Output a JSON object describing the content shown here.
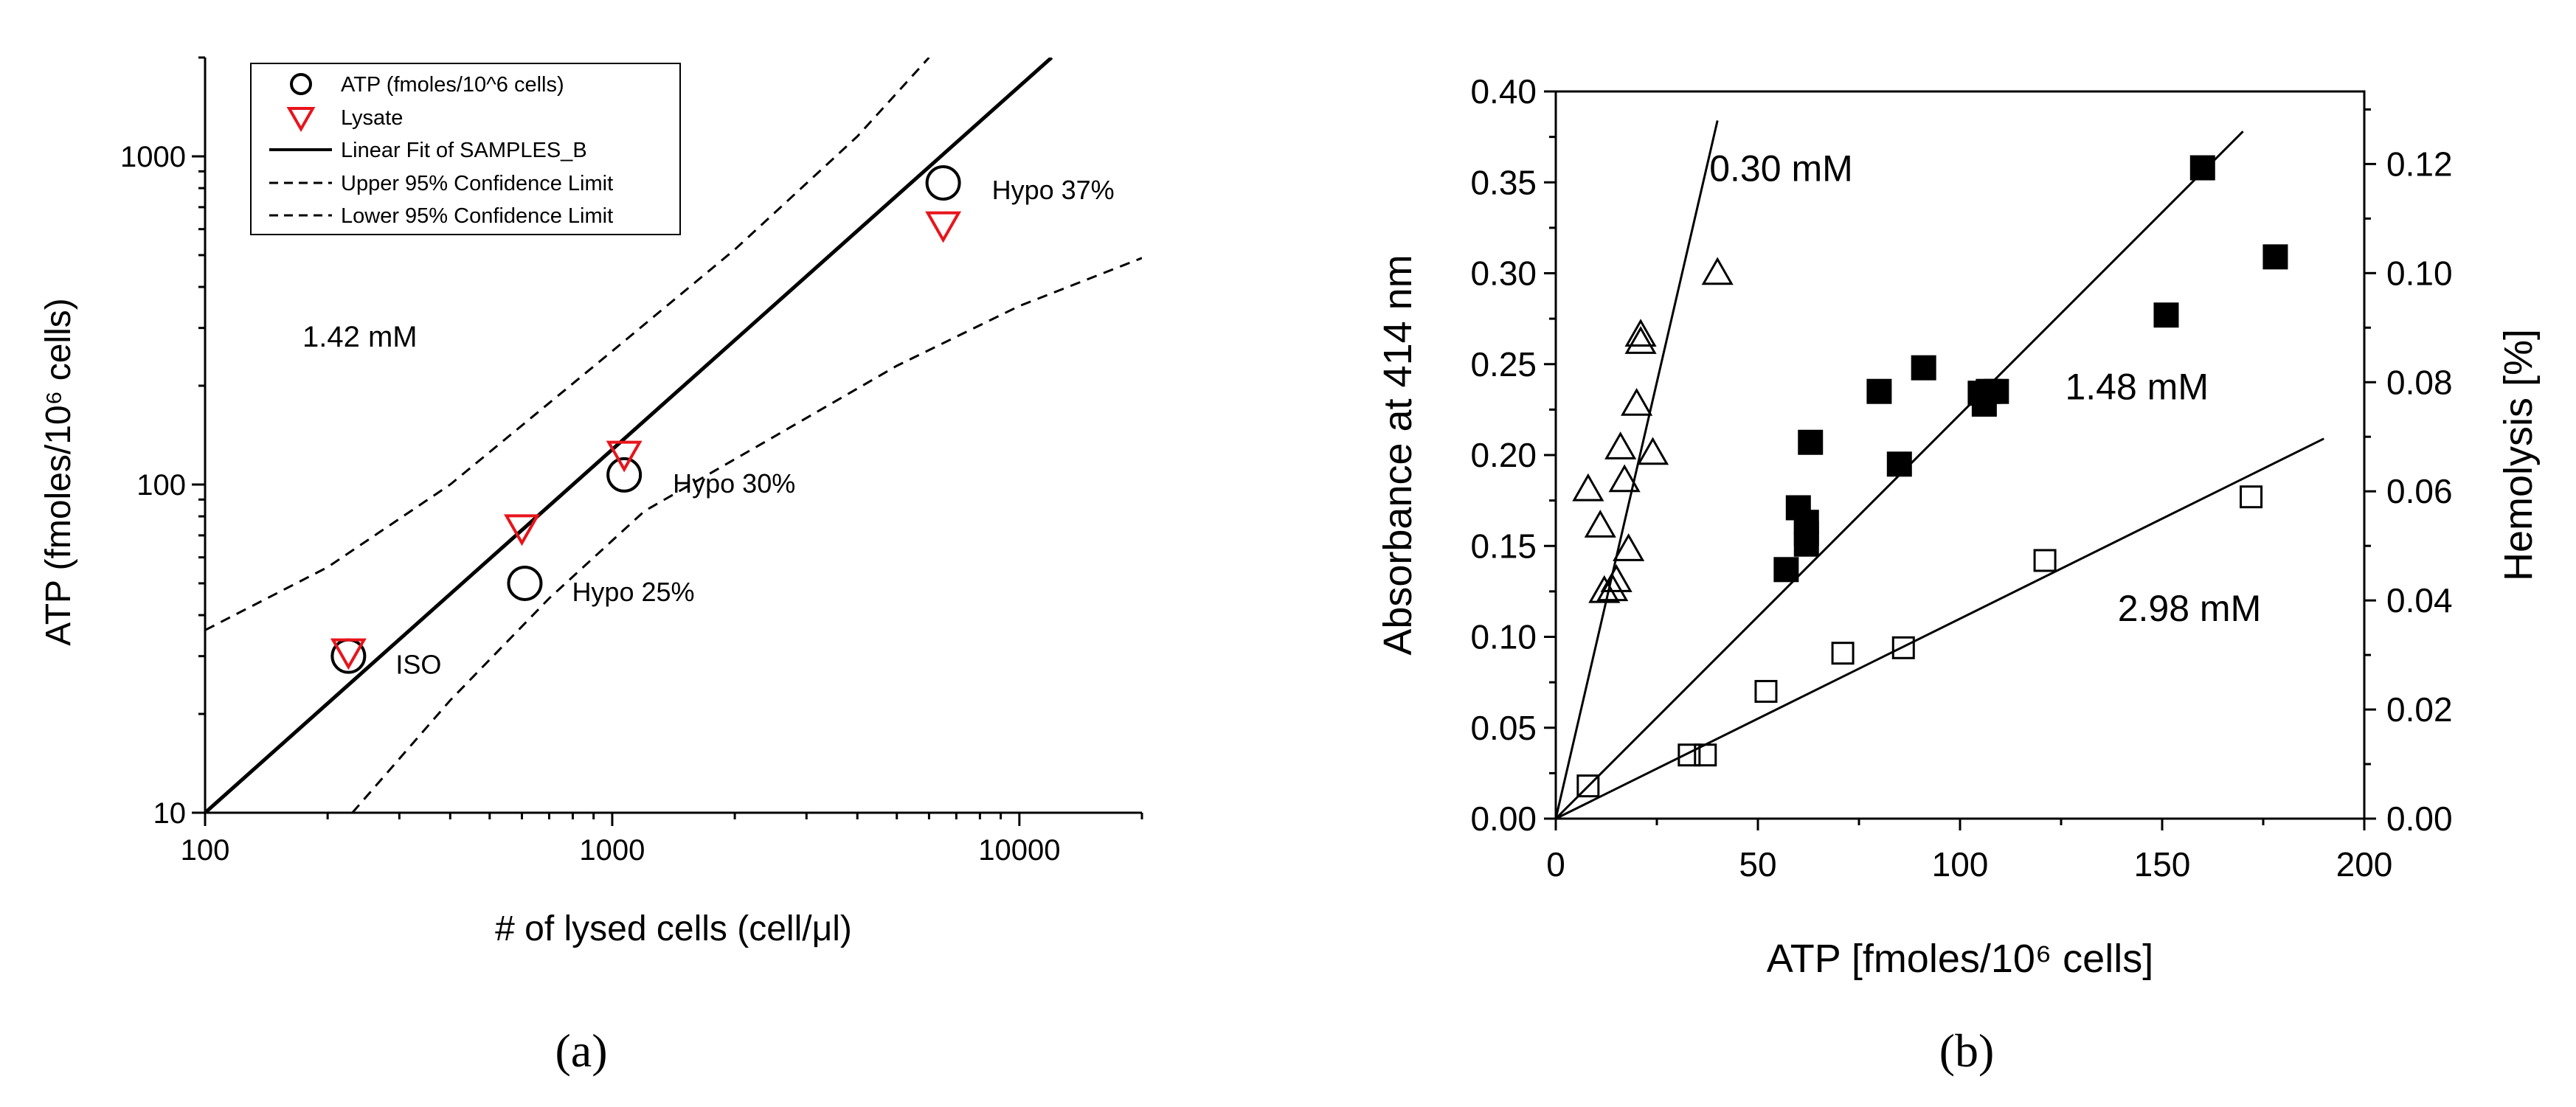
{
  "chart_data": [
    {
      "type": "scatter",
      "panel_label": "(a)",
      "xscale": "log",
      "yscale": "log",
      "xlabel": "# of lysed cells (cell/μl)",
      "ylabel": "ATP (fmoles/10⁶ cells)",
      "xlim": [
        100,
        20000
      ],
      "ylim": [
        10,
        2000
      ],
      "x_ticks": [
        100,
        1000,
        10000
      ],
      "x_tick_labels": [
        "100",
        "1000",
        "10000"
      ],
      "y_ticks": [
        10,
        100,
        1000
      ],
      "y_tick_labels": [
        "10",
        "100",
        "1000"
      ],
      "annotation_main": "1.42 mM",
      "series": [
        {
          "name": "ATP (fmoles/10^6 cells)",
          "marker": "open-circle",
          "color": "#000000",
          "points": [
            [
              225,
              30
            ],
            [
              610,
              50
            ],
            [
              1070,
              107
            ],
            [
              6500,
              830
            ]
          ]
        },
        {
          "name": "Lysate",
          "marker": "open-triangle-down",
          "color": "#e8141b",
          "points": [
            [
              225,
              31
            ],
            [
              600,
              74
            ],
            [
              1070,
              124
            ],
            [
              6500,
              620
            ]
          ]
        }
      ],
      "point_labels": [
        {
          "text": "ISO",
          "x": 225,
          "y": 30
        },
        {
          "text": "Hypo 25%",
          "x": 610,
          "y": 50
        },
        {
          "text": "Hypo 30%",
          "x": 1070,
          "y": 107
        },
        {
          "text": "Hypo 37%",
          "x": 6500,
          "y": 830
        }
      ],
      "fit": {
        "name": "Linear Fit of SAMPLES_B",
        "x": [
          100,
          12000
        ],
        "y": [
          10,
          2000
        ]
      },
      "upper_ci": {
        "name": "Upper 95% Confidence Limit",
        "points": [
          [
            100,
            36
          ],
          [
            200,
            56
          ],
          [
            400,
            100
          ],
          [
            1000,
            255
          ],
          [
            2000,
            520
          ],
          [
            4000,
            1150
          ],
          [
            6000,
            2000
          ]
        ]
      },
      "lower_ci": {
        "name": "Lower 95% Confidence Limit",
        "points": [
          [
            230,
            10
          ],
          [
            400,
            22
          ],
          [
            700,
            45
          ],
          [
            1200,
            83
          ],
          [
            2500,
            140
          ],
          [
            5000,
            230
          ],
          [
            10000,
            350
          ],
          [
            20000,
            490
          ]
        ]
      },
      "legend": {
        "placement": "top-left",
        "entries": [
          "ATP (fmoles/10^6 cells)",
          "Lysate",
          "Linear Fit of SAMPLES_B",
          "Upper 95% Confidence Limit",
          "Lower 95% Confidence Limit"
        ]
      }
    },
    {
      "type": "scatter",
      "panel_label": "(b)",
      "xlabel": "ATP [fmoles/10⁶ cells]",
      "ylabel": "Absorbance at 414 nm",
      "y2label": "Hemolysis [%]",
      "xlim": [
        0,
        200
      ],
      "ylim": [
        0,
        0.4
      ],
      "y2lim": [
        0,
        0.1333
      ],
      "x_ticks": [
        0,
        50,
        100,
        150,
        200
      ],
      "x_tick_labels": [
        "0",
        "50",
        "100",
        "150",
        "200"
      ],
      "y_ticks": [
        0,
        0.05,
        0.1,
        0.15,
        0.2,
        0.25,
        0.3,
        0.35,
        0.4
      ],
      "y_tick_labels": [
        "0.00",
        "0.05",
        "0.10",
        "0.15",
        "0.20",
        "0.25",
        "0.30",
        "0.35",
        "0.40"
      ],
      "y2_ticks": [
        0,
        0.02,
        0.04,
        0.06,
        0.08,
        0.1,
        0.12
      ],
      "y2_tick_labels": [
        "0.00",
        "0.02",
        "0.04",
        "0.06",
        "0.08",
        "0.10",
        "0.12"
      ],
      "series": [
        {
          "name": "0.30 mM",
          "marker": "open-triangle-up",
          "color": "#000000",
          "points": [
            [
              8,
              0.181
            ],
            [
              11,
              0.161
            ],
            [
              12,
              0.125
            ],
            [
              14,
              0.126
            ],
            [
              15,
              0.131
            ],
            [
              16,
              0.204
            ],
            [
              17,
              0.186
            ],
            [
              18,
              0.148
            ],
            [
              20,
              0.228
            ],
            [
              21,
              0.266
            ],
            [
              21,
              0.262
            ],
            [
              24,
              0.201
            ],
            [
              40,
              0.3
            ]
          ],
          "fit": [
            [
              0,
              0
            ],
            [
              40,
              0.384
            ]
          ]
        },
        {
          "name": "1.48 mM",
          "marker": "filled-square",
          "color": "#000000",
          "points": [
            [
              57,
              0.137
            ],
            [
              60,
              0.171
            ],
            [
              62,
              0.163
            ],
            [
              62,
              0.157
            ],
            [
              62,
              0.151
            ],
            [
              63,
              0.207
            ],
            [
              80,
              0.235
            ],
            [
              85,
              0.195
            ],
            [
              91,
              0.248
            ],
            [
              105,
              0.234
            ],
            [
              106,
              0.228
            ],
            [
              107,
              0.235
            ],
            [
              109,
              0.235
            ],
            [
              151,
              0.277
            ],
            [
              160,
              0.358
            ],
            [
              178,
              0.309
            ]
          ],
          "fit": [
            [
              0,
              0
            ],
            [
              170,
              0.378
            ]
          ]
        },
        {
          "name": "2.98 mM",
          "marker": "open-square",
          "color": "#000000",
          "points": [
            [
              8,
              0.018
            ],
            [
              33,
              0.035
            ],
            [
              37,
              0.035
            ],
            [
              52,
              0.07
            ],
            [
              71,
              0.091
            ],
            [
              86,
              0.094
            ],
            [
              121,
              0.142
            ],
            [
              172,
              0.177
            ]
          ],
          "fit": [
            [
              0,
              0
            ],
            [
              190,
              0.209
            ]
          ]
        }
      ],
      "series_labels": [
        {
          "text": "0.30 mM",
          "x": 38,
          "y": 0.358
        },
        {
          "text": "1.48 mM",
          "x": 126,
          "y": 0.238
        },
        {
          "text": "2.98 mM",
          "x": 139,
          "y": 0.116
        }
      ]
    }
  ]
}
